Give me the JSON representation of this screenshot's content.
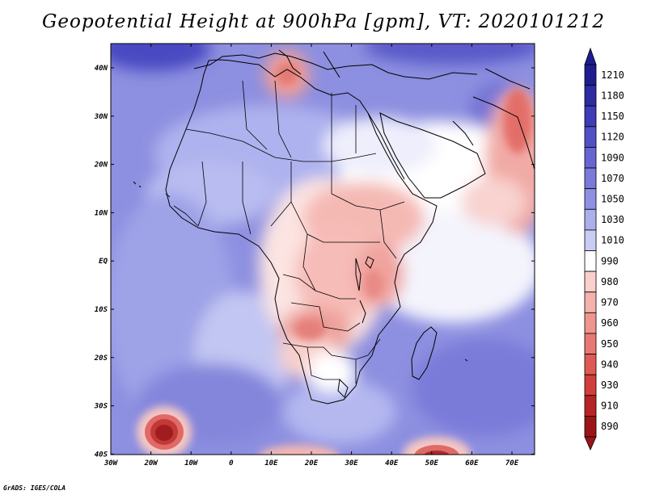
{
  "title": "Geopotential Height at 900hPa [gpm], VT: 2020101212",
  "credit": "GrADS: IGES/COLA",
  "map": {
    "region": "Africa",
    "variable": "Geopotential Height",
    "level": "900hPa",
    "units": "gpm",
    "valid_time": "2020101212",
    "lon_labels": [
      "30W",
      "20W",
      "10W",
      "0",
      "10E",
      "20E",
      "30E",
      "40E",
      "50E",
      "60E",
      "70E"
    ],
    "lat_labels": [
      "40N",
      "30N",
      "20N",
      "10N",
      "EQ",
      "10S",
      "20S",
      "30S",
      "40S"
    ]
  },
  "colorbar": {
    "levels": [
      "1210",
      "1180",
      "1150",
      "1120",
      "1090",
      "1070",
      "1050",
      "1030",
      "1010",
      "990",
      "980",
      "970",
      "960",
      "950",
      "940",
      "930",
      "910",
      "890"
    ],
    "colors": [
      "#1d1d8f",
      "#2b2ba4",
      "#3d3db8",
      "#5151c6",
      "#6666d2",
      "#7a7ad9",
      "#9090e2",
      "#abafec",
      "#c9cdf4",
      "#ffffff",
      "#f9d0cc",
      "#f5b1ac",
      "#ee9590",
      "#e87873",
      "#df5a55",
      "#d23e3c",
      "#b82426",
      "#9b1417"
    ]
  }
}
